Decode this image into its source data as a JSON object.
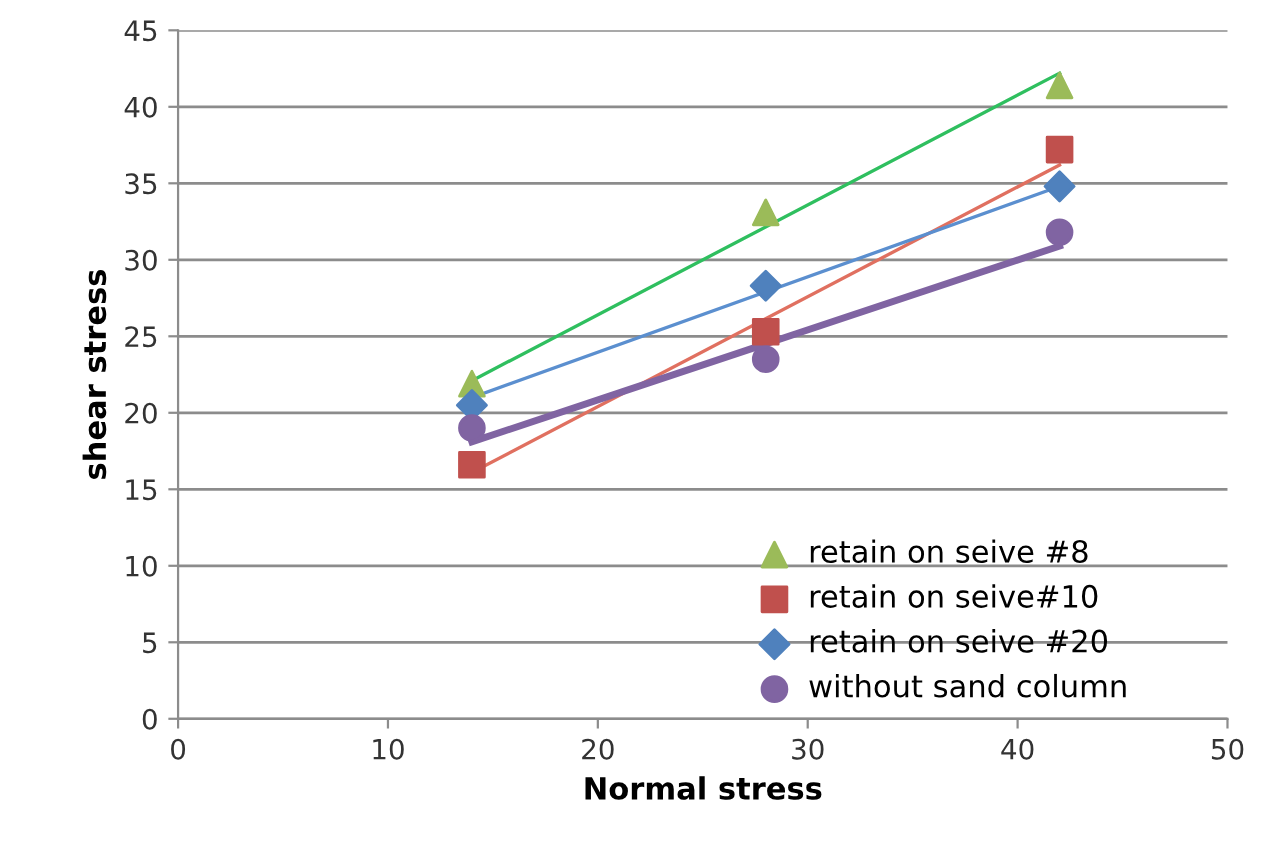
{
  "chart_data": {
    "type": "scatter",
    "xlabel": "Normal stress",
    "ylabel": "shear stress",
    "xlim": [
      0,
      50
    ],
    "xticks": [
      0,
      10,
      20,
      30,
      40,
      50
    ],
    "ylim": [
      0,
      45
    ],
    "yticks": [
      0,
      5,
      10,
      15,
      20,
      25,
      30,
      35,
      40,
      45
    ],
    "grid": "y",
    "legend": "bottom right",
    "series": [
      {
        "name": "retain on seive #8",
        "marker": "triangle",
        "color": "#9bbb59",
        "x": [
          14,
          28,
          42
        ],
        "values": [
          21.9,
          33.1,
          41.4
        ]
      },
      {
        "name": "retain on seive#10",
        "marker": "square",
        "color": "#c0504d",
        "x": [
          14,
          28,
          42
        ],
        "values": [
          16.6,
          25.3,
          37.2
        ]
      },
      {
        "name": "retain on seive #20",
        "marker": "diamond",
        "color": "#4f81bd",
        "x": [
          14,
          28,
          42
        ],
        "values": [
          20.5,
          28.3,
          34.8
        ]
      },
      {
        "name": "without sand column",
        "marker": "circle",
        "color": "#8064a2",
        "x": [
          14,
          28,
          42
        ],
        "values": [
          19.0,
          23.5,
          31.8
        ]
      },
      {
        "type": "line",
        "color": "#2fbf5f",
        "x": [
          14,
          42
        ],
        "values": [
          22.1,
          42.2
        ]
      },
      {
        "type": "line",
        "color": "#e07060",
        "x": [
          14,
          42
        ],
        "values": [
          16.1,
          36.2
        ]
      },
      {
        "type": "line",
        "color": "#5b8fcf",
        "x": [
          14,
          42
        ],
        "values": [
          21.0,
          34.8
        ]
      },
      {
        "type": "line",
        "color": "#8064a2",
        "x": [
          14,
          42
        ],
        "values": [
          18.1,
          30.9
        ]
      }
    ]
  }
}
